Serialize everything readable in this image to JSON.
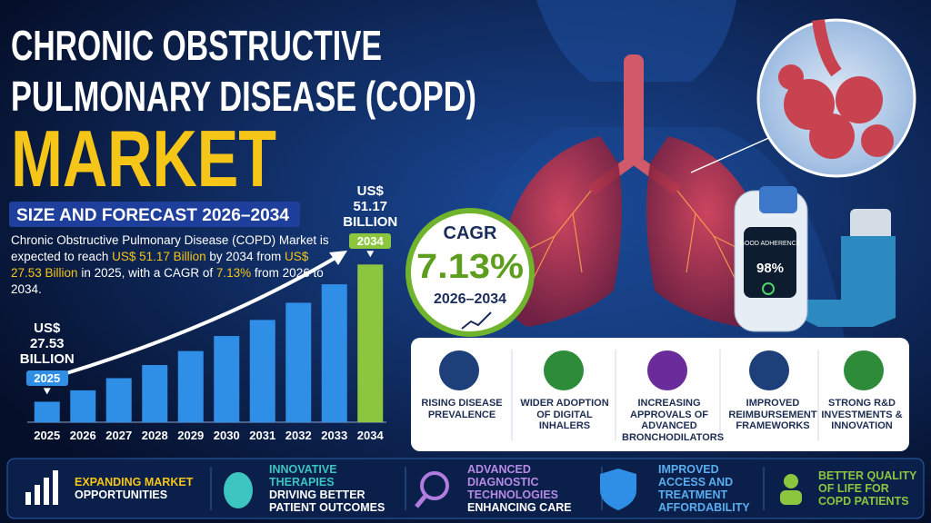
{
  "header": {
    "title_lines": [
      "CHRONIC OBSTRUCTIVE",
      "PULMONARY DISEASE (COPD)",
      "MARKET"
    ],
    "subtitle": "SIZE AND FORECAST 2026–2034"
  },
  "description": [
    "Chronic Obstructive Pulmonary Disease (COPD) Market is expected to reach ",
    "US$ 51.17 Billion",
    " by 2034 from ",
    "US$ 27.53 Billion",
    " in 2025, with a CAGR of ",
    "7.13%",
    " from 2026 to 2034."
  ],
  "chart_data": {
    "type": "bar",
    "categories": [
      "2025",
      "2026",
      "2027",
      "2028",
      "2029",
      "2030",
      "2031",
      "2032",
      "2033",
      "2034"
    ],
    "values": [
      27.53,
      29.49,
      31.59,
      33.85,
      36.26,
      38.85,
      41.62,
      44.58,
      47.76,
      51.17
    ],
    "value_labels": [
      "US$ 27.53 BILLION",
      null,
      null,
      null,
      null,
      null,
      null,
      null,
      null,
      "US$ 51.17 BILLION"
    ],
    "colors": [
      "#2f8fe6",
      "#2f8fe6",
      "#2f8fe6",
      "#2f8fe6",
      "#2f8fe6",
      "#2f8fe6",
      "#2f8fe6",
      "#2f8fe6",
      "#2f8fe6",
      "#8cc63f"
    ],
    "ylim": [
      24,
      52
    ]
  },
  "cagr": {
    "label": "CAGR",
    "value": "7.13%",
    "period": "2026–2034"
  },
  "device": {
    "status": "GOOD ADHERENCE",
    "reading": "98%"
  },
  "drivers": [
    "RISING DISEASE PREVALENCE",
    "WIDER ADOPTION OF DIGITAL INHALERS",
    "INCREASING APPROVALS OF ADVANCED BRONCHODILATORS",
    "IMPROVED REIMBURSEMENT FRAMEWORKS",
    "STRONG R&D INVESTMENTS & INNOVATION"
  ],
  "highlights": [
    {
      "title": "EXPANDING MARKET",
      "text": "OPPORTUNITIES"
    },
    {
      "title": "INNOVATIVE THERAPIES",
      "text": "DRIVING BETTER PATIENT OUTCOMES"
    },
    {
      "title": "ADVANCED DIAGNOSTIC TECHNOLOGIES",
      "text": "ENHANCING CARE"
    },
    {
      "title": "IMPROVED ACCESS AND TREATMENT AFFORDABILITY"
    },
    {
      "title": "BETTER QUALITY OF LIFE FOR COPD PATIENTS"
    }
  ]
}
